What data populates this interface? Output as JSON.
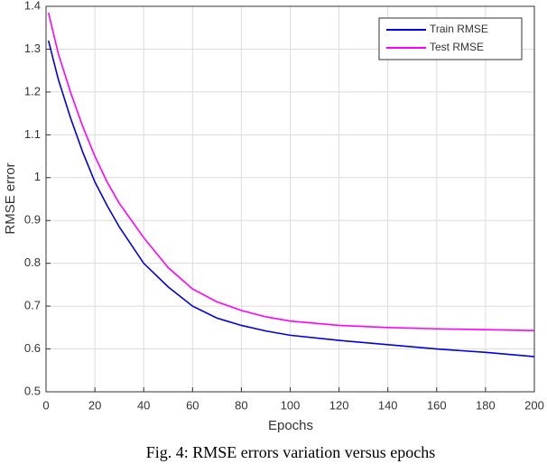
{
  "chart_data": {
    "type": "line",
    "xlabel": "Epochs",
    "ylabel": "RMSE error",
    "caption": "Fig. 4: RMSE errors variation versus epochs",
    "x": [
      1,
      5,
      10,
      15,
      20,
      25,
      30,
      40,
      50,
      60,
      70,
      80,
      90,
      100,
      120,
      140,
      160,
      180,
      200
    ],
    "series": [
      {
        "name": "Train RMSE",
        "color": "#0000e6",
        "values": [
          1.32,
          1.23,
          1.14,
          1.06,
          0.99,
          0.935,
          0.885,
          0.8,
          0.745,
          0.7,
          0.672,
          0.655,
          0.642,
          0.632,
          0.62,
          0.61,
          0.6,
          0.592,
          0.582
        ]
      },
      {
        "name": "Test RMSE",
        "color": "#ff00ff",
        "values": [
          1.385,
          1.29,
          1.2,
          1.12,
          1.05,
          0.99,
          0.94,
          0.86,
          0.79,
          0.74,
          0.71,
          0.69,
          0.675,
          0.665,
          0.655,
          0.65,
          0.647,
          0.645,
          0.643
        ]
      }
    ],
    "xlim": [
      0,
      200
    ],
    "xticks": [
      0,
      20,
      40,
      60,
      80,
      100,
      120,
      140,
      160,
      180,
      200
    ],
    "ylim": [
      0.5,
      1.4
    ],
    "yticks": [
      0.5,
      0.6,
      0.7,
      0.8,
      0.9,
      1,
      1.1,
      1.2,
      1.3,
      1.4
    ],
    "grid": true,
    "legend": "upper-right"
  }
}
